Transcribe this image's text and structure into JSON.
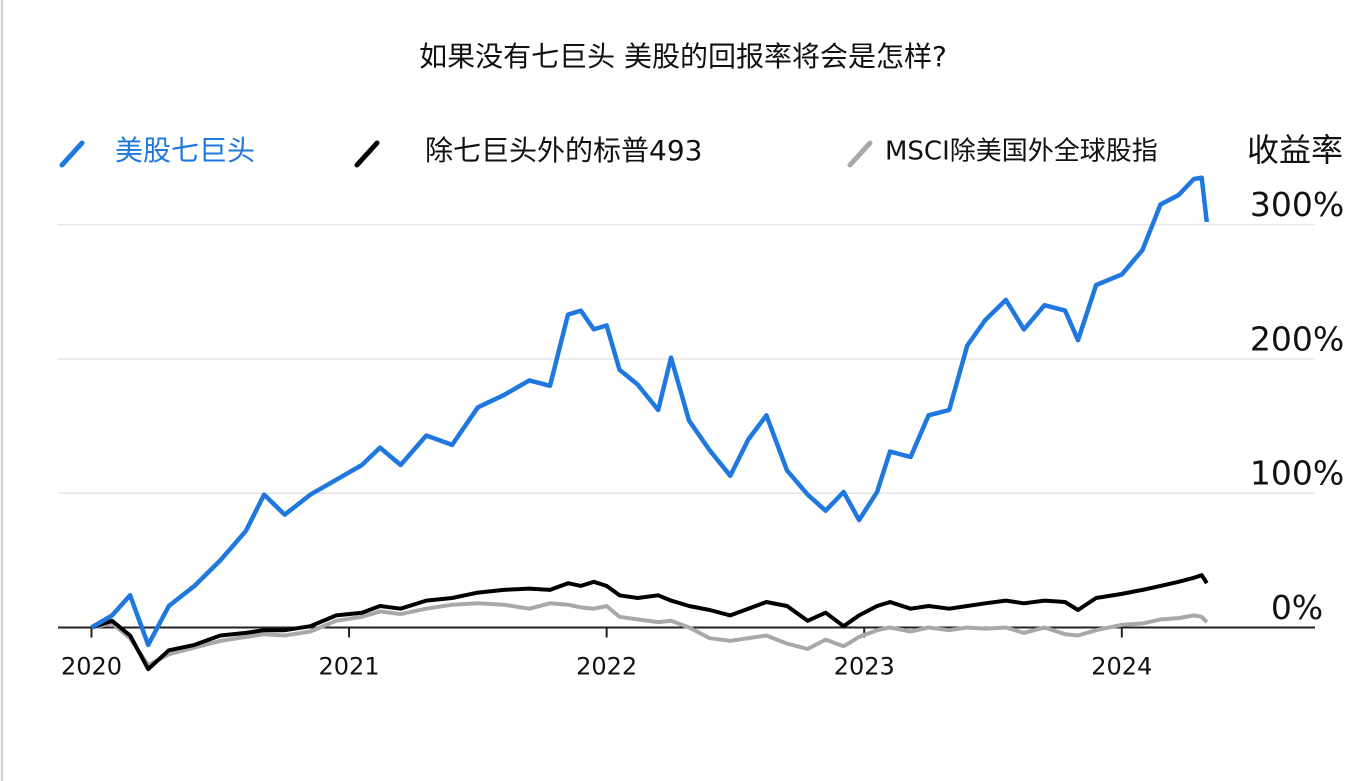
{
  "chart_data": {
    "type": "line",
    "title": "如果没有七巨头  美股的回报率将会是怎样?",
    "y_axis_title": "收益率",
    "x": [
      2020,
      2020.08,
      2020.15,
      2020.22,
      2020.3,
      2020.4,
      2020.5,
      2020.6,
      2020.67,
      2020.75,
      2020.85,
      2020.95,
      2021.05,
      2021.12,
      2021.2,
      2021.3,
      2021.4,
      2021.5,
      2021.6,
      2021.7,
      2021.78,
      2021.85,
      2021.9,
      2021.95,
      2022.0,
      2022.05,
      2022.12,
      2022.2,
      2022.25,
      2022.32,
      2022.4,
      2022.48,
      2022.55,
      2022.62,
      2022.7,
      2022.78,
      2022.85,
      2022.92,
      2022.98,
      2023.05,
      2023.1,
      2023.18,
      2023.25,
      2023.33,
      2023.4,
      2023.47,
      2023.55,
      2023.62,
      2023.7,
      2023.78,
      2023.83,
      2023.9,
      2024.0,
      2024.08,
      2024.15,
      2024.22,
      2024.28,
      2024.31,
      2024.33
    ],
    "series": [
      {
        "name": "美股七巨头",
        "color": "#1f78e0",
        "values": [
          0,
          9,
          24,
          -13,
          16,
          31,
          50,
          72,
          99,
          84,
          99,
          110,
          121,
          134,
          121,
          143,
          136,
          164,
          173,
          184,
          180,
          233,
          236,
          222,
          225,
          192,
          181,
          162,
          201,
          154,
          132,
          113,
          140,
          158,
          117,
          99,
          87,
          101,
          80,
          101,
          131,
          127,
          158,
          162,
          210,
          229,
          244,
          222,
          240,
          236,
          214,
          255,
          263,
          281,
          315,
          322,
          334,
          335,
          302
        ]
      },
      {
        "name": "除七巨头外的标普493",
        "color": "#000000",
        "values": [
          0,
          5,
          -6,
          -31,
          -17,
          -13,
          -6,
          -4,
          -2,
          -2,
          1,
          9,
          11,
          16,
          14,
          20,
          22,
          26,
          28,
          29,
          28,
          33,
          31,
          34,
          31,
          24,
          22,
          24,
          20,
          16,
          13,
          9,
          14,
          19,
          16,
          5,
          11,
          1,
          9,
          16,
          19,
          14,
          16,
          14,
          16,
          18,
          20,
          18,
          20,
          19,
          13,
          22,
          25,
          28,
          31,
          34,
          37,
          39,
          33
        ]
      },
      {
        "name": "MSCI除美国外全球股指",
        "color": "#a8a8a8",
        "values": [
          0,
          3,
          -8,
          -28,
          -20,
          -15,
          -10,
          -7,
          -5,
          -6,
          -3,
          5,
          8,
          12,
          10,
          14,
          17,
          18,
          17,
          14,
          18,
          17,
          15,
          14,
          16,
          8,
          6,
          4,
          5,
          0,
          -8,
          -10,
          -8,
          -6,
          -12,
          -16,
          -9,
          -14,
          -7,
          -2,
          0,
          -3,
          0,
          -2,
          0,
          -1,
          0,
          -4,
          0,
          -5,
          -6,
          -2,
          2,
          3,
          6,
          7,
          9,
          8,
          4
        ]
      }
    ],
    "xlim": [
      2019.87,
      2024.75
    ],
    "xticks": [
      2020,
      2021,
      2022,
      2023,
      2024
    ],
    "ylim": [
      -54,
      337
    ],
    "yticks": [
      {
        "value": 0,
        "label": "0%"
      },
      {
        "value": 100,
        "label": "100%"
      },
      {
        "value": 200,
        "label": "200%"
      },
      {
        "value": 300,
        "label": "300%"
      }
    ],
    "grid": true
  }
}
